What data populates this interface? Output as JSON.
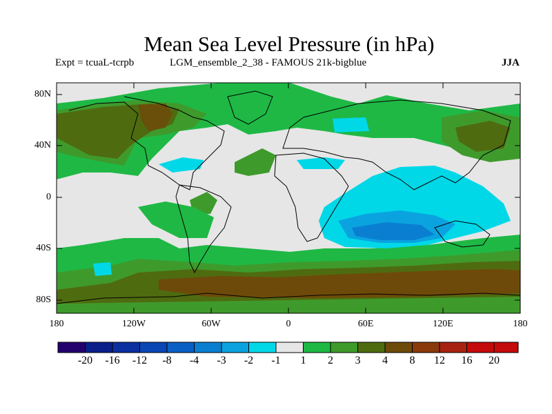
{
  "figure": {
    "title": "Mean Sea Level Pressure (in hPa)",
    "experiment_label": "Expt = tcuaL-tcrpb",
    "ensemble_label": "LGM_ensemble_2_38 - FAMOUS 21k-bigblue",
    "season_label": "JJA"
  },
  "axes": {
    "y_ticks": [
      "80N",
      "40N",
      "0",
      "40S",
      "80S"
    ],
    "x_ticks": [
      "180",
      "120W",
      "60W",
      "0",
      "60E",
      "120E",
      "180"
    ]
  },
  "colorbar": {
    "labels": [
      "-20",
      "-16",
      "-12",
      "-8",
      "-4",
      "-3",
      "-2",
      "-1",
      "1",
      "2",
      "3",
      "4",
      "8",
      "12",
      "16",
      "20"
    ],
    "colors": [
      "#24006e",
      "#0a1f8a",
      "#0a2fa0",
      "#0a46b4",
      "#0a5fc4",
      "#0a7fd2",
      "#0aa3e0",
      "#00d8e8",
      "#e6e6e6",
      "#1fb845",
      "#3f9a2c",
      "#4f6b10",
      "#6e4a0a",
      "#8a3a0a",
      "#a82210",
      "#c40a0a"
    ]
  },
  "colors": {
    "background": "#ffffff",
    "neutral": "#e6e6e6",
    "coastline": "#000000"
  }
}
